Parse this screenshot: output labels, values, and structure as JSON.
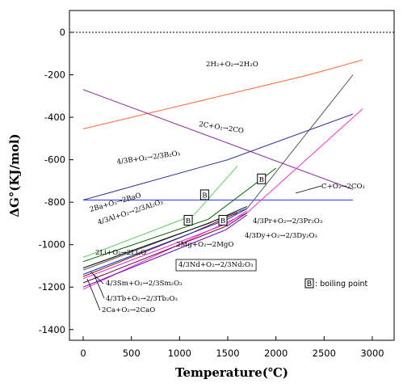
{
  "chart_data": {
    "type": "line",
    "xlabel": "Temperature(℃)",
    "ylabel": "ΔG°(KJ/mol)",
    "xlim": [
      -200,
      3250
    ],
    "ylim": [
      -1500,
      60
    ],
    "xticks": [
      0,
      500,
      1000,
      1500,
      2000,
      2500,
      3000
    ],
    "yticks": [
      0,
      -200,
      -400,
      -600,
      -800,
      -1000,
      -1200,
      -1400
    ],
    "zero_line": true,
    "grid": false,
    "boiling_point_marker": "B",
    "legend_note": ": boiling point",
    "series": [
      {
        "name": "2H₂+O₂→2H₂O",
        "color": "#ff6633",
        "points": [
          [
            0,
            -455
          ],
          [
            2300,
            -205
          ],
          [
            2900,
            -130
          ]
        ]
      },
      {
        "name": "2C+O₂→2CO",
        "color": "#8e2fa0",
        "points": [
          [
            0,
            -270
          ],
          [
            2800,
            -740
          ]
        ]
      },
      {
        "name": "C+O₂→2CO₂",
        "color": "#3333ff",
        "points": [
          [
            0,
            -790
          ],
          [
            2800,
            -790
          ]
        ]
      },
      {
        "name": "4/3B+O₂→2/3B₂O₃",
        "color": "#333399",
        "points": [
          [
            0,
            -790
          ],
          [
            1500,
            -600
          ],
          [
            2800,
            -385
          ]
        ]
      },
      {
        "name": "4/3Al+O₂→2/3Al₂O₃",
        "color": "#006600",
        "points": [
          [
            0,
            -1080
          ],
          [
            1300,
            -880
          ],
          [
            2000,
            -640
          ]
        ]
      },
      {
        "name": "2Ba+O₂→2BaO",
        "color": "#66cc66",
        "points": [
          [
            0,
            -1060
          ],
          [
            1150,
            -860
          ],
          [
            1600,
            -630
          ]
        ]
      },
      {
        "name": "4/3Pr+O₂→2/3Pr₂O₃",
        "color": "#555555",
        "points": [
          [
            0,
            -1120
          ],
          [
            1700,
            -830
          ],
          [
            2800,
            -200
          ]
        ]
      },
      {
        "name": "2Li+O₂→2Li₂O",
        "color": "#000000",
        "points": [
          [
            0,
            -1110
          ],
          [
            1300,
            -900
          ],
          [
            1700,
            -820
          ]
        ]
      },
      {
        "name": "2Mg+O₂→2MgO",
        "color": "#990000",
        "points": [
          [
            0,
            -1150
          ],
          [
            1100,
            -950
          ],
          [
            1600,
            -850
          ]
        ]
      },
      {
        "name": "4/3Dy+O₂→2/3Dy₂O₃",
        "color": "#ff33cc",
        "points": [
          [
            0,
            -1210
          ],
          [
            1700,
            -850
          ],
          [
            2900,
            -360
          ]
        ]
      },
      {
        "name": "4/3Nd+O₂→2/3Nd₂O₃",
        "color": "#0033cc",
        "points": [
          [
            0,
            -1140
          ],
          [
            1500,
            -880
          ],
          [
            1700,
            -830
          ]
        ]
      },
      {
        "name": "4/3Sm+O₂→2/3Sm₂O₃",
        "color": "#cc33cc",
        "points": [
          [
            0,
            -1160
          ],
          [
            1500,
            -900
          ],
          [
            1700,
            -840
          ]
        ]
      },
      {
        "name": "4/3Tb+O₂→2/3Tb₂O₃",
        "color": "#660033",
        "points": [
          [
            0,
            -1180
          ],
          [
            1500,
            -910
          ],
          [
            1700,
            -850
          ]
        ]
      },
      {
        "name": "2Ca+O₂→2CaO",
        "color": "#6600cc",
        "points": [
          [
            0,
            -1200
          ],
          [
            1480,
            -930
          ],
          [
            1700,
            -860
          ]
        ]
      }
    ],
    "boiling_points": [
      [
        1260,
        -765
      ],
      [
        1850,
        -690
      ],
      [
        1090,
        -885
      ],
      [
        1450,
        -885
      ]
    ],
    "annotations": [
      "2H₂+O₂→2H₂O",
      "2C+O₂→2CO",
      "4/3B+O₂→2/3B₂O₃",
      "C+O₂→2CO₂",
      "2Ba+O₂→2BaO",
      "4/3Al+O₂→2/3Al₂O₃",
      "2Li+O₂→2Li₂O",
      "2Mg+O₂→2MgO",
      "4/3Pr+O₂→2/3Pr₂O₃",
      "4/3Dy+O₂→2/3Dy₂O₃",
      "4/3Nd+O₂→2/3Nd₂O₃",
      "4/3Sm+O₂→2/3Sm₂O₃",
      "4/3Tb+O₂→2/3Tb₂O₃",
      "2Ca+O₂→2CaO"
    ]
  }
}
